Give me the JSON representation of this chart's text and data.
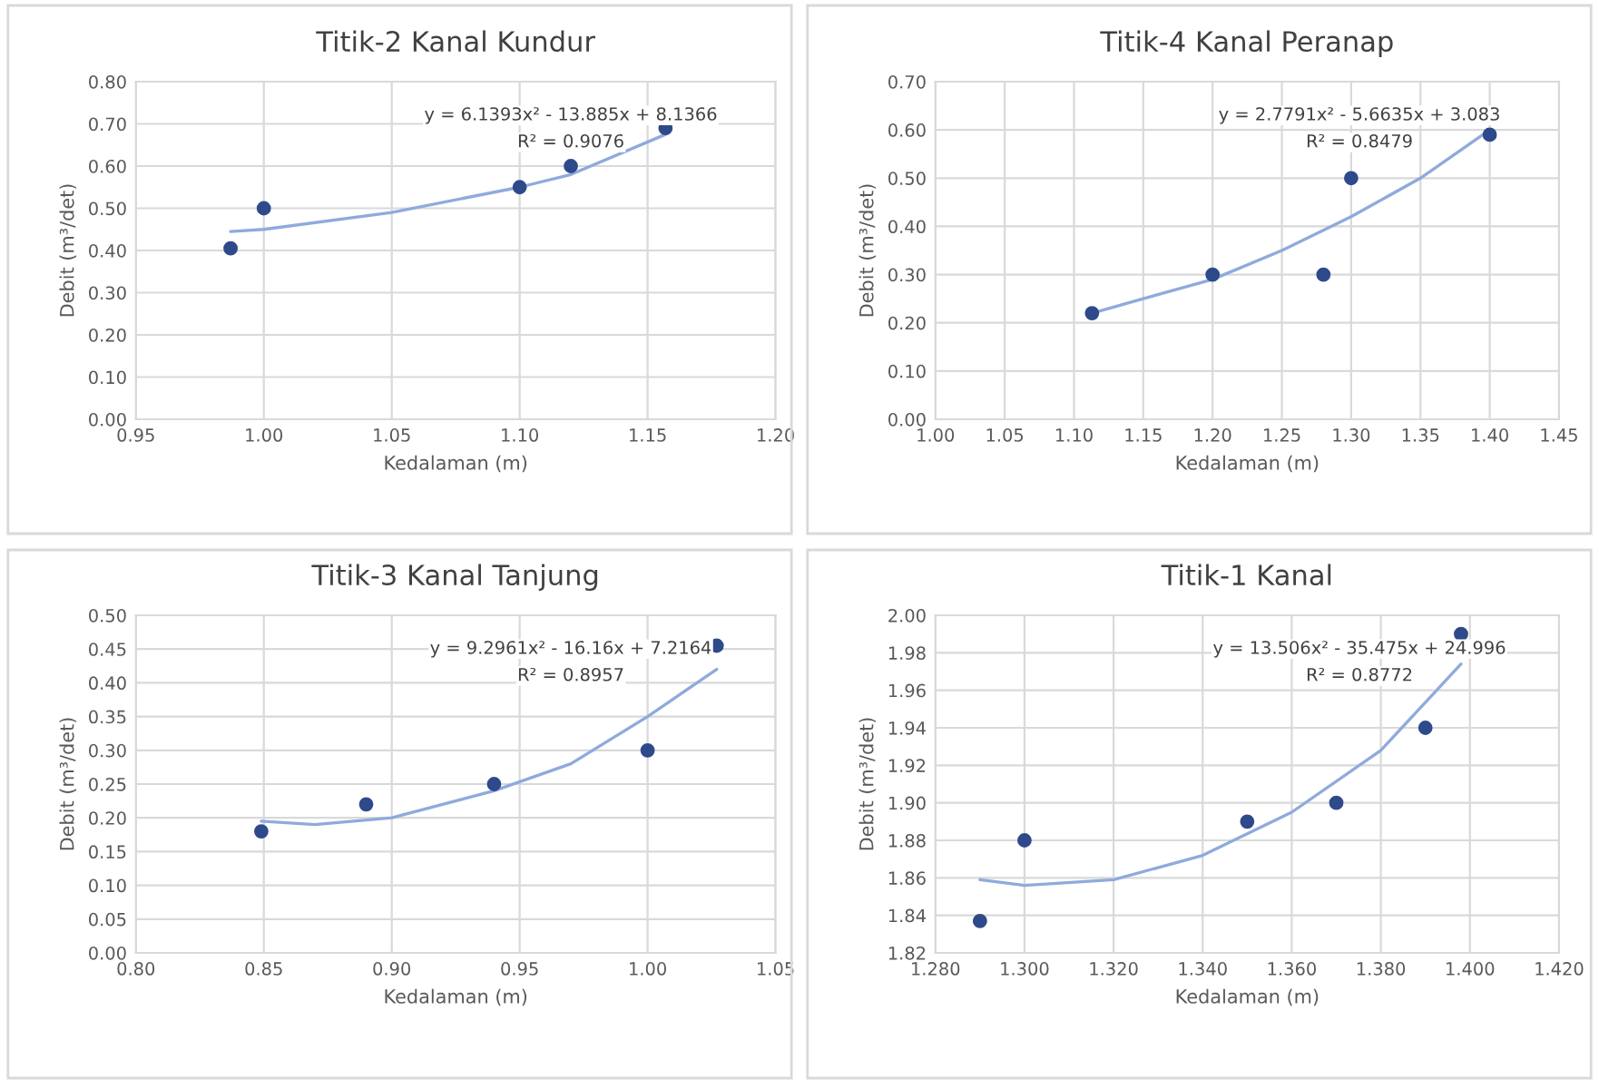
{
  "chart_data": [
    {
      "type": "scatter",
      "title": "Titik-2 Kanal Kundur",
      "xlabel": "Kedalaman (m)",
      "ylabel": "Debit (m³/det)",
      "grid": true,
      "xlim": [
        0.95,
        1.2
      ],
      "xticks": [
        {
          "value": 0.95,
          "label": "0.95"
        },
        {
          "value": 1.0,
          "label": "1.00"
        },
        {
          "value": 1.05,
          "label": "1.05"
        },
        {
          "value": 1.1,
          "label": "1.10"
        },
        {
          "value": 1.15,
          "label": "1.15"
        },
        {
          "value": 1.2,
          "label": "1.20"
        }
      ],
      "ylim": [
        0,
        0.8
      ],
      "yticks": [
        {
          "value": 0,
          "label": "0.00"
        },
        {
          "value": 0.1,
          "label": "0.10"
        },
        {
          "value": 0.2,
          "label": "0.20"
        },
        {
          "value": 0.3,
          "label": "0.30"
        },
        {
          "value": 0.4,
          "label": "0.40"
        },
        {
          "value": 0.5,
          "label": "0.50"
        },
        {
          "value": 0.6,
          "label": "0.60"
        },
        {
          "value": 0.7,
          "label": "0.70"
        },
        {
          "value": 0.8,
          "label": "0.80"
        }
      ],
      "annotations": [
        "y = 6.1393x² - 13.885x + 8.1366",
        "R² = 0.9076"
      ],
      "series": [
        {
          "marker": "circle",
          "color": "#2e4a8b",
          "x": [
            0.987,
            1.0,
            1.1,
            1.12,
            1.157
          ],
          "values": [
            0.405,
            0.5,
            0.55,
            0.6,
            0.69
          ]
        },
        {
          "type": "line",
          "color": "#8faadc",
          "x": [
            0.987,
            1.0,
            1.05,
            1.1,
            1.12,
            1.157
          ],
          "values": [
            0.445,
            0.45,
            0.49,
            0.55,
            0.58,
            0.675
          ]
        }
      ]
    },
    {
      "type": "scatter",
      "title": "Titik-4 Kanal Peranap",
      "xlabel": "Kedalaman (m)",
      "ylabel": "Debit (m³/det)",
      "grid": true,
      "xlim": [
        1.0,
        1.45
      ],
      "xticks": [
        {
          "value": 1.0,
          "label": "1.00"
        },
        {
          "value": 1.05,
          "label": "1.05"
        },
        {
          "value": 1.1,
          "label": "1.10"
        },
        {
          "value": 1.15,
          "label": "1.15"
        },
        {
          "value": 1.2,
          "label": "1.20"
        },
        {
          "value": 1.25,
          "label": "1.25"
        },
        {
          "value": 1.3,
          "label": "1.30"
        },
        {
          "value": 1.35,
          "label": "1.35"
        },
        {
          "value": 1.4,
          "label": "1.40"
        },
        {
          "value": 1.45,
          "label": "1.45"
        }
      ],
      "ylim": [
        0,
        0.7
      ],
      "yticks": [
        {
          "value": 0,
          "label": "0.00"
        },
        {
          "value": 0.1,
          "label": "0.10"
        },
        {
          "value": 0.2,
          "label": "0.20"
        },
        {
          "value": 0.3,
          "label": "0.30"
        },
        {
          "value": 0.4,
          "label": "0.40"
        },
        {
          "value": 0.5,
          "label": "0.50"
        },
        {
          "value": 0.6,
          "label": "0.60"
        },
        {
          "value": 0.7,
          "label": "0.70"
        }
      ],
      "annotations": [
        "y = 2.7791x² - 5.6635x + 3.083",
        "R² = 0.8479"
      ],
      "series": [
        {
          "marker": "circle",
          "color": "#2e4a8b",
          "x": [
            1.113,
            1.2,
            1.28,
            1.3,
            1.4
          ],
          "values": [
            0.22,
            0.3,
            0.3,
            0.5,
            0.59
          ]
        },
        {
          "type": "line",
          "color": "#8faadc",
          "x": [
            1.113,
            1.15,
            1.2,
            1.25,
            1.3,
            1.35,
            1.4
          ],
          "values": [
            0.22,
            0.25,
            0.29,
            0.35,
            0.42,
            0.5,
            0.6
          ]
        }
      ]
    },
    {
      "type": "scatter",
      "title": "Titik-3 Kanal Tanjung",
      "xlabel": "Kedalaman (m)",
      "ylabel": "Debit (m³/det)",
      "grid": true,
      "xlim": [
        0.8,
        1.05
      ],
      "xticks": [
        {
          "value": 0.8,
          "label": "0.80"
        },
        {
          "value": 0.85,
          "label": "0.85"
        },
        {
          "value": 0.9,
          "label": "0.90"
        },
        {
          "value": 0.95,
          "label": "0.95"
        },
        {
          "value": 1.0,
          "label": "1.00"
        },
        {
          "value": 1.05,
          "label": "1.05"
        }
      ],
      "ylim": [
        0,
        0.5
      ],
      "yticks": [
        {
          "value": 0,
          "label": "0.00"
        },
        {
          "value": 0.05,
          "label": "0.05"
        },
        {
          "value": 0.1,
          "label": "0.10"
        },
        {
          "value": 0.15,
          "label": "0.15"
        },
        {
          "value": 0.2,
          "label": "0.20"
        },
        {
          "value": 0.25,
          "label": "0.25"
        },
        {
          "value": 0.3,
          "label": "0.30"
        },
        {
          "value": 0.35,
          "label": "0.35"
        },
        {
          "value": 0.4,
          "label": "0.40"
        },
        {
          "value": 0.45,
          "label": "0.45"
        },
        {
          "value": 0.5,
          "label": "0.50"
        }
      ],
      "annotations": [
        "y = 9.2961x² - 16.16x + 7.2164",
        "R² = 0.8957"
      ],
      "series": [
        {
          "marker": "circle",
          "color": "#2e4a8b",
          "x": [
            0.849,
            0.89,
            0.94,
            1.0,
            1.027
          ],
          "values": [
            0.18,
            0.22,
            0.25,
            0.3,
            0.455
          ]
        },
        {
          "type": "line",
          "color": "#8faadc",
          "x": [
            0.849,
            0.87,
            0.9,
            0.94,
            0.97,
            1.0,
            1.027
          ],
          "values": [
            0.195,
            0.19,
            0.2,
            0.24,
            0.28,
            0.35,
            0.42
          ]
        }
      ]
    },
    {
      "type": "scatter",
      "title": "Titik-1 Kanal",
      "xlabel": "Kedalaman (m)",
      "ylabel": "Debit (m³/det)",
      "grid": true,
      "xlim": [
        1.28,
        1.42
      ],
      "xticks": [
        {
          "value": 1.28,
          "label": "1.280"
        },
        {
          "value": 1.3,
          "label": "1.300"
        },
        {
          "value": 1.32,
          "label": "1.320"
        },
        {
          "value": 1.34,
          "label": "1.340"
        },
        {
          "value": 1.36,
          "label": "1.360"
        },
        {
          "value": 1.38,
          "label": "1.380"
        },
        {
          "value": 1.4,
          "label": "1.400"
        },
        {
          "value": 1.42,
          "label": "1.420"
        }
      ],
      "ylim": [
        1.82,
        2.0
      ],
      "yticks": [
        {
          "value": 1.82,
          "label": "1.82"
        },
        {
          "value": 1.84,
          "label": "1.84"
        },
        {
          "value": 1.86,
          "label": "1.86"
        },
        {
          "value": 1.88,
          "label": "1.88"
        },
        {
          "value": 1.9,
          "label": "1.90"
        },
        {
          "value": 1.92,
          "label": "1.92"
        },
        {
          "value": 1.94,
          "label": "1.94"
        },
        {
          "value": 1.96,
          "label": "1.96"
        },
        {
          "value": 1.98,
          "label": "1.98"
        },
        {
          "value": 2.0,
          "label": "2.00"
        }
      ],
      "annotations": [
        "y = 13.506x² - 35.475x + 24.996",
        "R² = 0.8772"
      ],
      "series": [
        {
          "marker": "circle",
          "color": "#2e4a8b",
          "x": [
            1.29,
            1.3,
            1.35,
            1.37,
            1.39,
            1.398
          ],
          "values": [
            1.837,
            1.88,
            1.89,
            1.9,
            1.94,
            1.99
          ]
        },
        {
          "type": "line",
          "color": "#8faadc",
          "x": [
            1.29,
            1.3,
            1.32,
            1.34,
            1.36,
            1.38,
            1.398
          ],
          "values": [
            1.859,
            1.856,
            1.859,
            1.872,
            1.895,
            1.928,
            1.974
          ]
        }
      ]
    }
  ]
}
